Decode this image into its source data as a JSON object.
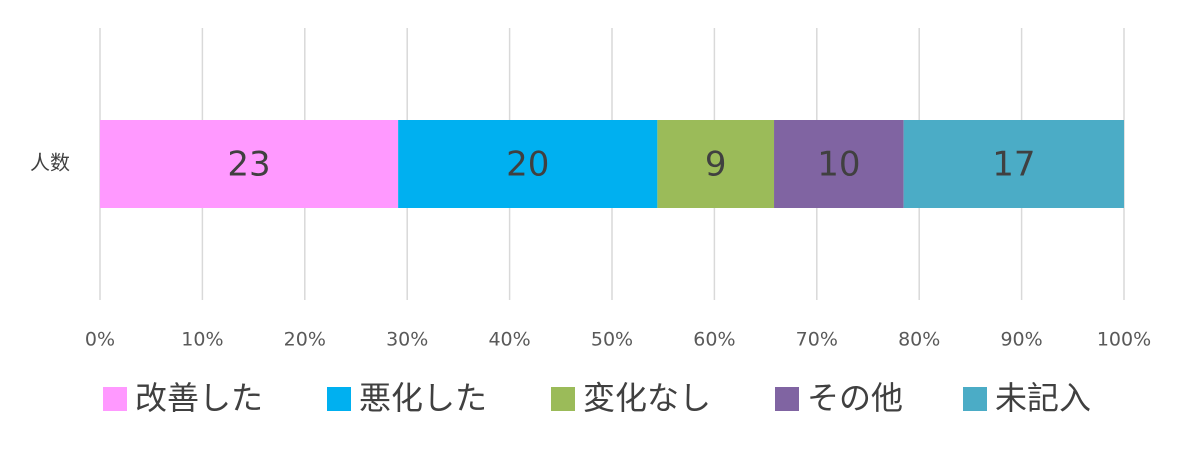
{
  "chart_data": {
    "type": "bar",
    "orientation": "horizontal",
    "stacked": "percent",
    "categories": [
      "人数"
    ],
    "series": [
      {
        "name": "改善した",
        "values": [
          23
        ],
        "color": "#FF99FF"
      },
      {
        "name": "悪化した",
        "values": [
          20
        ],
        "color": "#00B0F0"
      },
      {
        "name": "変化なし",
        "values": [
          9
        ],
        "color": "#9BBB59"
      },
      {
        "name": "その他",
        "values": [
          10
        ],
        "color": "#8064A2"
      },
      {
        "name": "未記入",
        "values": [
          17
        ],
        "color": "#4BACC6"
      }
    ],
    "x_ticks": [
      "0%",
      "10%",
      "20%",
      "30%",
      "40%",
      "50%",
      "60%",
      "70%",
      "80%",
      "90%",
      "100%"
    ],
    "xlim": [
      0,
      100
    ],
    "grid": true,
    "legend": "bottom",
    "title": "",
    "xlabel": "",
    "ylabel": ""
  }
}
